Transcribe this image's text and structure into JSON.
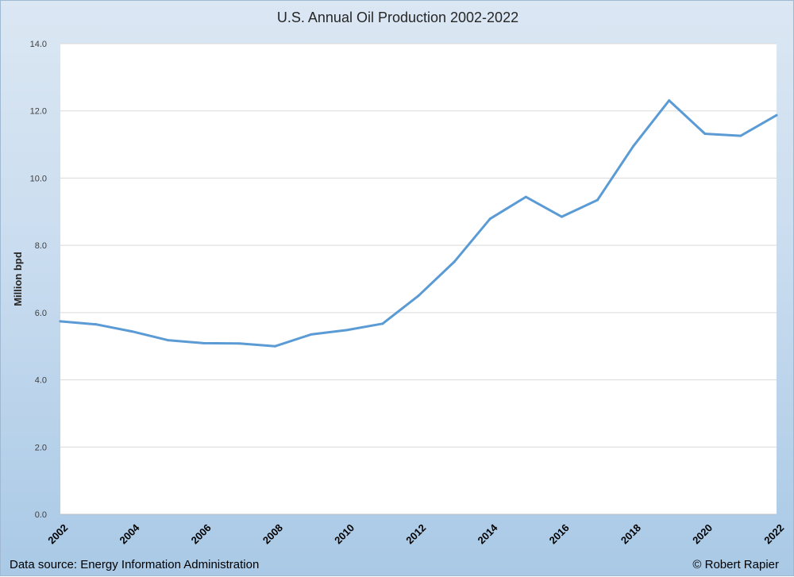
{
  "chart_data": {
    "type": "line",
    "title": "U.S. Annual Oil Production 2002-2022",
    "xlabel": "",
    "ylabel": "Million bpd",
    "ylim": [
      0,
      14
    ],
    "yticks": [
      "0.0",
      "2.0",
      "4.0",
      "6.0",
      "8.0",
      "10.0",
      "12.0",
      "14.0"
    ],
    "xticks": [
      "2002",
      "2004",
      "2006",
      "2008",
      "2010",
      "2012",
      "2014",
      "2016",
      "2018",
      "2020",
      "2022"
    ],
    "grid": true,
    "x": [
      2002,
      2003,
      2004,
      2005,
      2006,
      2007,
      2008,
      2009,
      2010,
      2011,
      2012,
      2013,
      2014,
      2015,
      2016,
      2017,
      2018,
      2019,
      2020,
      2021,
      2022
    ],
    "series": [
      {
        "values": [
          5.74,
          5.65,
          5.44,
          5.18,
          5.09,
          5.08,
          5.0,
          5.35,
          5.48,
          5.67,
          6.5,
          7.51,
          8.79,
          9.44,
          8.85,
          9.35,
          10.95,
          12.31,
          11.32,
          11.26,
          11.87
        ],
        "color": "#5b9bd5"
      }
    ]
  },
  "footer": {
    "source": "Data source: Energy Information Administration",
    "credit": "© Robert Rapier"
  }
}
